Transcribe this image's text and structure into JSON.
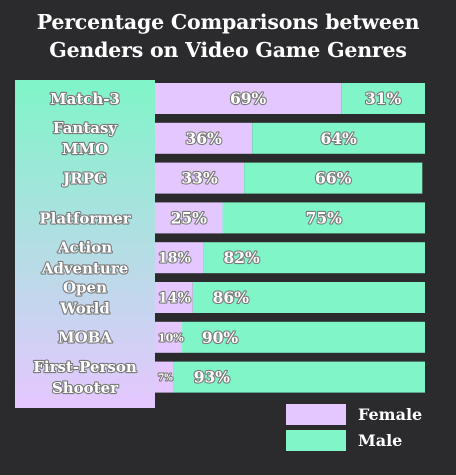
{
  "chart_data": {
    "type": "bar",
    "stacked": true,
    "orientation": "horizontal",
    "title_lines": [
      "Percentage Comparisons between",
      "Genders on Video Game Genres"
    ],
    "categories": [
      [
        "Match-3"
      ],
      [
        "Fantasy",
        "MMO"
      ],
      [
        "JRPG"
      ],
      [
        "Platformer"
      ],
      [
        "Action",
        "Adventure"
      ],
      [
        "Open",
        "World"
      ],
      [
        "MOBA"
      ],
      [
        "First-Person",
        "Shooter"
      ]
    ],
    "series": [
      {
        "name": "Female",
        "color": "#e5c7ff",
        "values": [
          69,
          36,
          33,
          25,
          18,
          14,
          10,
          7
        ]
      },
      {
        "name": "Male",
        "color": "#7ff5c8",
        "values": [
          31,
          64,
          66,
          75,
          82,
          86,
          90,
          93
        ]
      }
    ],
    "value_suffix": "%",
    "xlim": [
      0,
      100
    ],
    "legend_position": "bottom-right",
    "category_panel_gradient": [
      "#7ff5c8",
      "#e5c7ff"
    ]
  }
}
